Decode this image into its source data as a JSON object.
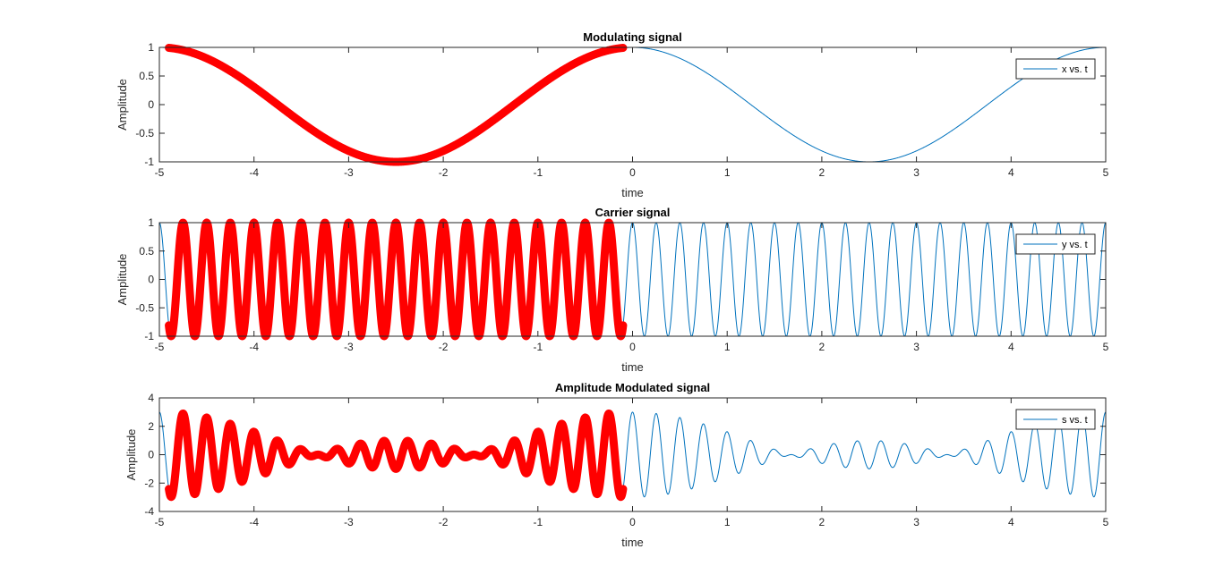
{
  "chart_data": [
    {
      "type": "line",
      "title": "Modulating signal",
      "xlabel": "time",
      "ylabel": "Amplitude",
      "xlim": [
        -5,
        5
      ],
      "ylim": [
        -1,
        1
      ],
      "xticks": [
        "-5",
        "-4",
        "-3",
        "-2",
        "-1",
        "0",
        "1",
        "2",
        "3",
        "4",
        "5"
      ],
      "yticks": [
        "1",
        "0.5",
        "0",
        "-0.5",
        "-1"
      ],
      "function": "cos(2*pi*0.2*t)",
      "legend": {
        "location": "top-right",
        "entries": [
          "x vs. t"
        ]
      },
      "series": [
        {
          "name": "x vs. t",
          "color": "#0072bd",
          "x_range": [
            -5,
            5
          ]
        },
        {
          "color": "#ff0000",
          "x_range": [
            -4.9,
            -0.1
          ],
          "style": "thick"
        }
      ]
    },
    {
      "type": "line",
      "title": "Carrier signal",
      "xlabel": "time",
      "ylabel": "Amplitude",
      "xlim": [
        -5,
        5
      ],
      "ylim": [
        -1,
        1
      ],
      "xticks": [
        "-5",
        "-4",
        "-3",
        "-2",
        "-1",
        "0",
        "1",
        "2",
        "3",
        "4",
        "5"
      ],
      "yticks": [
        "1",
        "0.5",
        "0",
        "-0.5",
        "-1"
      ],
      "function": "cos(2*pi*4*t)",
      "legend": {
        "location": "top-right",
        "entries": [
          "y vs. t"
        ]
      },
      "series": [
        {
          "name": "y vs. t",
          "color": "#0072bd",
          "x_range": [
            -5,
            5
          ]
        },
        {
          "color": "#ff0000",
          "x_range": [
            -4.9,
            -0.1
          ],
          "style": "thick"
        }
      ]
    },
    {
      "type": "line",
      "title": "Amplitude Modulated signal",
      "xlabel": "time",
      "ylabel": "Amplitude",
      "xlim": [
        -5,
        5
      ],
      "ylim": [
        -4,
        4
      ],
      "xticks": [
        "-5",
        "-4",
        "-3",
        "-2",
        "-1",
        "0",
        "1",
        "2",
        "3",
        "4",
        "5"
      ],
      "yticks": [
        "4",
        "2",
        "0",
        "-2",
        "-4"
      ],
      "function": "(1 + 2*cos(2*pi*0.2*t)) * cos(2*pi*4*t)",
      "legend": {
        "location": "top-right",
        "entries": [
          "s vs. t"
        ]
      },
      "series": [
        {
          "name": "s vs. t",
          "color": "#0072bd",
          "x_range": [
            -5,
            5
          ]
        },
        {
          "color": "#ff0000",
          "x_range": [
            -4.9,
            -0.1
          ],
          "style": "thick"
        }
      ]
    }
  ]
}
